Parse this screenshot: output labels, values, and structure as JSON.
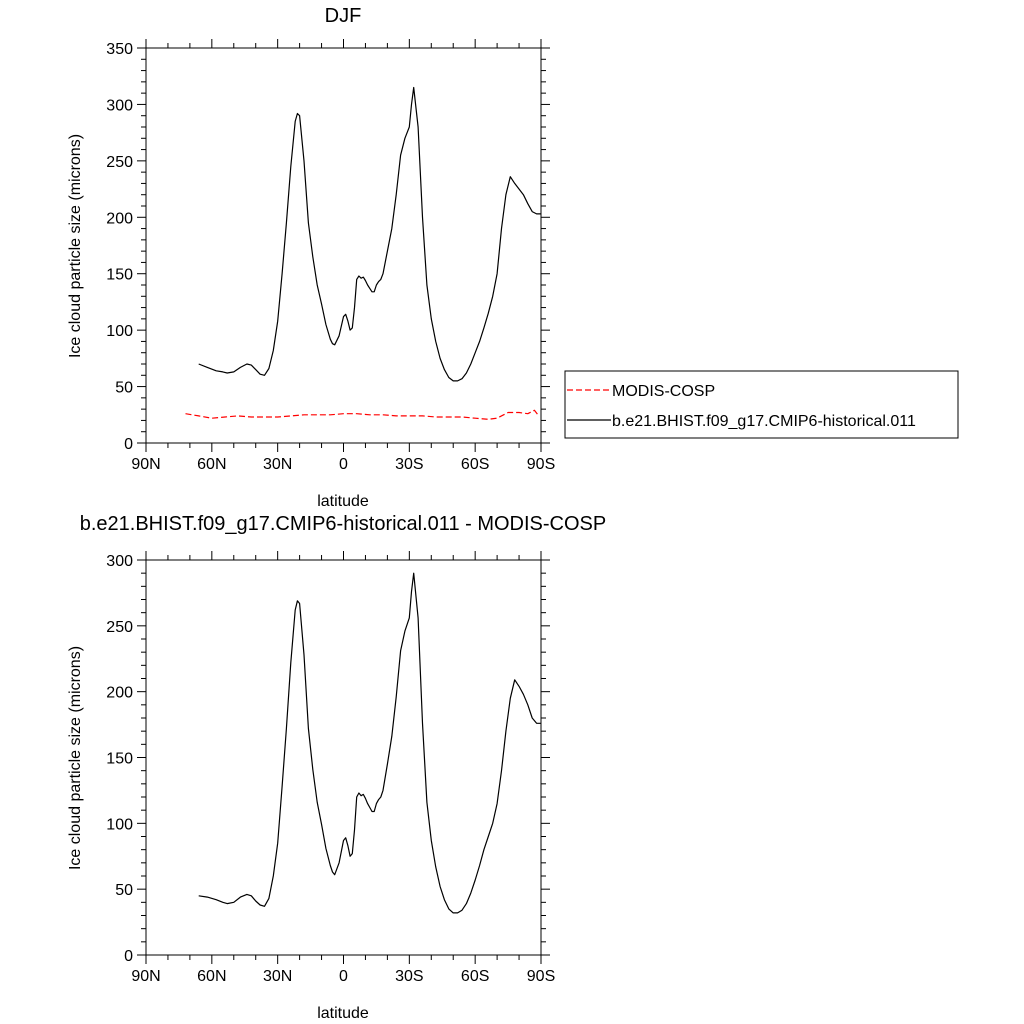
{
  "chart_data": [
    {
      "type": "line",
      "title": "DJF",
      "xlabel": "latitude",
      "ylabel": "Ice cloud particle size (microns)",
      "xlim": [
        90,
        -90
      ],
      "ylim": [
        0,
        350
      ],
      "yticks": [
        0,
        50,
        100,
        150,
        200,
        250,
        300,
        350
      ],
      "xticks": [
        {
          "value": 90,
          "label": "90N"
        },
        {
          "value": 60,
          "label": "60N"
        },
        {
          "value": 30,
          "label": "30N"
        },
        {
          "value": 0,
          "label": "0"
        },
        {
          "value": -30,
          "label": "30S"
        },
        {
          "value": -60,
          "label": "60S"
        },
        {
          "value": -90,
          "label": "90S"
        }
      ],
      "legend": {
        "position": "right"
      },
      "series": [
        {
          "name": "MODIS-COSP",
          "color": "#ff0000",
          "style": "dashed",
          "x": [
            72,
            66,
            60,
            54,
            48,
            42,
            36,
            30,
            24,
            18,
            12,
            6,
            0,
            -6,
            -12,
            -18,
            -24,
            -30,
            -36,
            -42,
            -48,
            -54,
            -60,
            -66,
            -70,
            -75,
            -80,
            -84,
            -87,
            -89
          ],
          "y": [
            26,
            24,
            22,
            23,
            24,
            23,
            23,
            23,
            24,
            25,
            25,
            25,
            26,
            26,
            25,
            25,
            24,
            24,
            24,
            23,
            23,
            23,
            22,
            21,
            22,
            27,
            27,
            26,
            29,
            24
          ]
        },
        {
          "name": "b.e21.BHIST.f09_g17.CMIP6-historical.011",
          "color": "#000000",
          "style": "solid",
          "x": [
            66,
            62,
            58,
            55,
            53,
            50,
            47,
            44,
            42,
            40,
            38,
            36,
            34,
            32,
            30,
            28,
            26,
            24,
            22,
            21,
            20,
            18,
            16,
            14,
            12,
            10,
            8,
            6,
            5,
            4,
            2,
            0,
            -1,
            -2,
            -3,
            -4,
            -5,
            -6,
            -7,
            -8,
            -9,
            -10,
            -11,
            -12,
            -13,
            -14,
            -15,
            -16,
            -17,
            -18,
            -20,
            -22,
            -24,
            -26,
            -28,
            -30,
            -31,
            -32,
            -34,
            -36,
            -38,
            -40,
            -42,
            -44,
            -46,
            -48,
            -50,
            -52,
            -54,
            -56,
            -58,
            -60,
            -62,
            -64,
            -66,
            -68,
            -70,
            -72,
            -74,
            -76,
            -78,
            -80,
            -82,
            -84,
            -86,
            -88,
            -90
          ],
          "y": [
            70,
            67,
            64,
            63,
            62,
            63,
            67,
            70,
            69,
            65,
            61,
            60,
            66,
            82,
            108,
            150,
            195,
            245,
            285,
            292,
            290,
            250,
            195,
            165,
            140,
            123,
            105,
            92,
            88,
            87,
            95,
            112,
            114,
            108,
            100,
            102,
            120,
            145,
            148,
            146,
            147,
            144,
            140,
            137,
            134,
            134,
            140,
            143,
            145,
            150,
            170,
            190,
            220,
            255,
            270,
            280,
            300,
            315,
            280,
            200,
            140,
            110,
            90,
            75,
            65,
            58,
            55,
            55,
            57,
            62,
            70,
            80,
            90,
            102,
            115,
            130,
            150,
            190,
            220,
            236,
            230,
            225,
            220,
            212,
            205,
            203,
            203
          ]
        }
      ]
    },
    {
      "type": "line",
      "title": "b.e21.BHIST.f09_g17.CMIP6-historical.011 - MODIS-COSP",
      "xlabel": "latitude",
      "ylabel": "Ice cloud particle size (microns)",
      "xlim": [
        90,
        -90
      ],
      "ylim": [
        0,
        300
      ],
      "yticks": [
        0,
        50,
        100,
        150,
        200,
        250,
        300
      ],
      "xticks": [
        {
          "value": 90,
          "label": "90N"
        },
        {
          "value": 60,
          "label": "60N"
        },
        {
          "value": 30,
          "label": "30N"
        },
        {
          "value": 0,
          "label": "0"
        },
        {
          "value": -30,
          "label": "30S"
        },
        {
          "value": -60,
          "label": "60S"
        },
        {
          "value": -90,
          "label": "90S"
        }
      ],
      "series": [
        {
          "color": "#000000",
          "style": "solid",
          "x": [
            66,
            62,
            58,
            55,
            53,
            50,
            47,
            44,
            42,
            40,
            38,
            36,
            34,
            32,
            30,
            28,
            26,
            24,
            22,
            21,
            20,
            18,
            16,
            14,
            12,
            10,
            8,
            6,
            5,
            4,
            2,
            0,
            -1,
            -2,
            -3,
            -4,
            -5,
            -6,
            -7,
            -8,
            -9,
            -10,
            -11,
            -12,
            -13,
            -14,
            -15,
            -16,
            -17,
            -18,
            -20,
            -22,
            -24,
            -26,
            -28,
            -30,
            -31,
            -32,
            -34,
            -36,
            -38,
            -40,
            -42,
            -44,
            -46,
            -48,
            -50,
            -52,
            -54,
            -56,
            -58,
            -60,
            -62,
            -64,
            -66,
            -68,
            -70,
            -72,
            -74,
            -76,
            -78,
            -80,
            -82,
            -84,
            -86,
            -88,
            -90
          ],
          "y": [
            45,
            44,
            42,
            40,
            39,
            40,
            44,
            46,
            45,
            41,
            38,
            37,
            43,
            60,
            85,
            128,
            172,
            222,
            262,
            269,
            267,
            228,
            172,
            141,
            116,
            99,
            81,
            68,
            63,
            61,
            70,
            87,
            89,
            83,
            75,
            77,
            95,
            120,
            123,
            121,
            122,
            119,
            115,
            112,
            109,
            109,
            115,
            118,
            120,
            125,
            145,
            166,
            196,
            231,
            246,
            256,
            276,
            290,
            256,
            176,
            116,
            87,
            67,
            52,
            42,
            35,
            32,
            32,
            34,
            39,
            47,
            57,
            68,
            80,
            90,
            100,
            115,
            140,
            170,
            195,
            209,
            204,
            198,
            190,
            180,
            176,
            176
          ]
        }
      ]
    }
  ]
}
